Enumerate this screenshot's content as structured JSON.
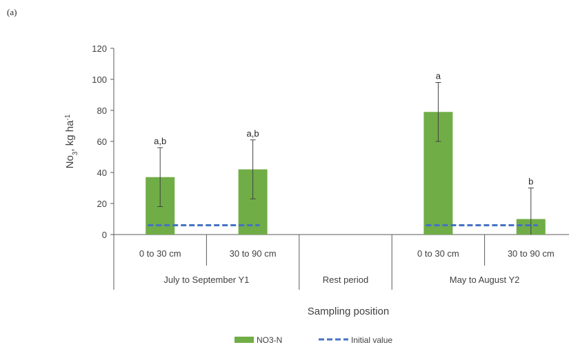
{
  "panel_label": "(a)",
  "chart_data": {
    "type": "bar",
    "title": "",
    "ylabel": "No",
    "ylabel_sub": "3",
    "ylabel_unit": ", kg ha",
    "ylabel_sup": "-1",
    "xlabel": "Sampling position",
    "ylim": [
      0,
      120
    ],
    "yticks": [
      0,
      20,
      40,
      60,
      80,
      100,
      120
    ],
    "grid": false,
    "legend_position": "bottom",
    "groups": [
      {
        "label": "July to September Y1",
        "categories": [
          "0 to 30 cm",
          "30 to 90 cm"
        ]
      },
      {
        "label": "Rest period",
        "categories": []
      },
      {
        "label": "May to August Y2",
        "categories": [
          "0 to 30 cm",
          "30 to 90 cm"
        ]
      }
    ],
    "series": [
      {
        "name": "NO3-N",
        "color": "#70ad47",
        "values": [
          37,
          42,
          79,
          10
        ],
        "error": [
          19,
          19,
          19,
          20
        ],
        "significance": [
          "a,b",
          "a,b",
          "a",
          "b"
        ]
      },
      {
        "name": "Initial value",
        "color": "#4472c4",
        "style": "dashed",
        "segments": [
          {
            "group": 0,
            "value": 6
          },
          {
            "group": 2,
            "value": 6
          }
        ]
      }
    ]
  }
}
